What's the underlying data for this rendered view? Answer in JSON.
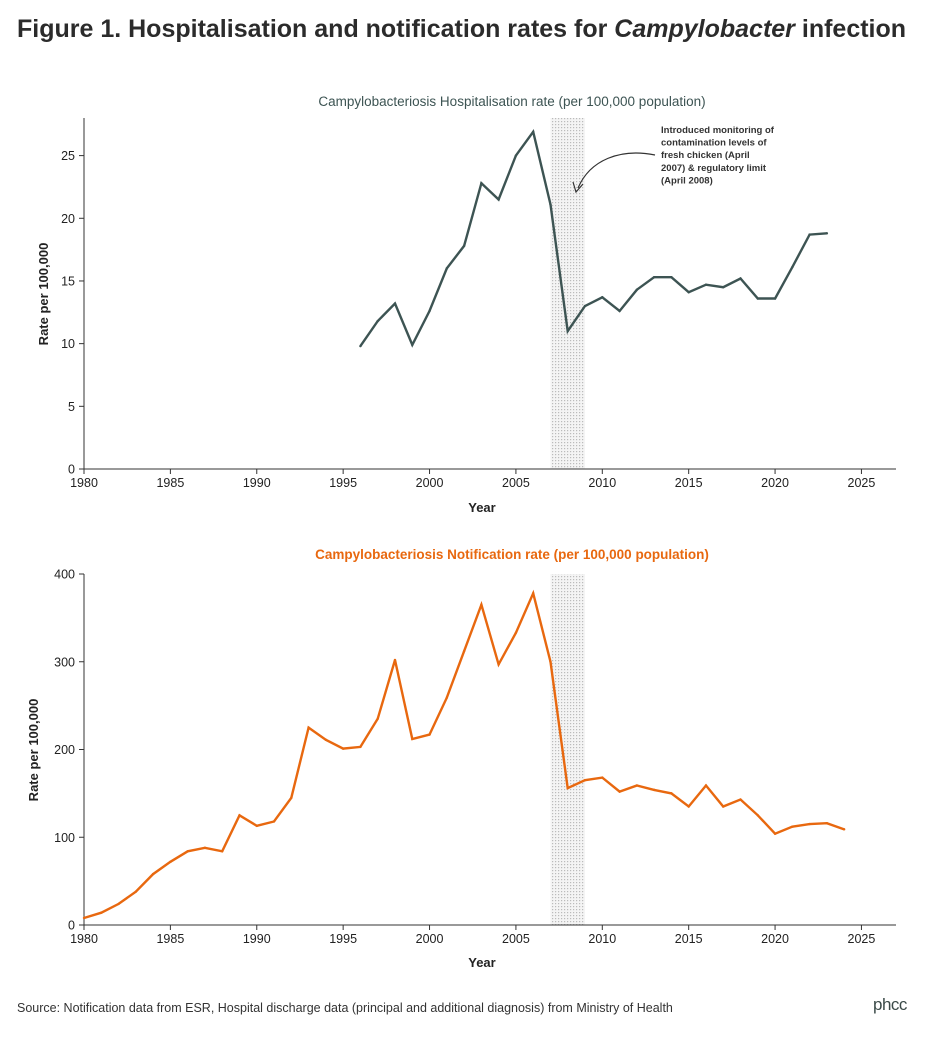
{
  "figure": {
    "title_prefix": "Figure 1. Hospitalisation and notification rates for ",
    "title_emph": "Campylobacter",
    "title_suffix": " infection"
  },
  "chart_data": [
    {
      "type": "line",
      "title": "Campylobacteriosis Hospitalisation rate (per 100,000 population)",
      "xlabel": "Year",
      "ylabel": "Rate per 100,000",
      "xlim": [
        1980,
        2027
      ],
      "ylim": [
        0,
        28
      ],
      "x_ticks": [
        1980,
        1985,
        1990,
        1995,
        2000,
        2005,
        2010,
        2015,
        2020,
        2025
      ],
      "y_ticks": [
        0,
        5,
        10,
        15,
        20,
        25
      ],
      "color": "#3d5453",
      "shaded_band": [
        2007,
        2009
      ],
      "annotation": {
        "lines": [
          "Introduced monitoring of",
          "contamination levels of",
          "fresh chicken (April",
          "2007) & regulatory limit",
          "(April 2008)"
        ]
      },
      "series": [
        {
          "name": "Hospitalisation rate",
          "x": [
            1996,
            1997,
            1998,
            1999,
            2000,
            2001,
            2002,
            2003,
            2004,
            2005,
            2006,
            2007,
            2008,
            2009,
            2010,
            2011,
            2012,
            2013,
            2014,
            2015,
            2016,
            2017,
            2018,
            2019,
            2020,
            2021,
            2022,
            2023
          ],
          "values": [
            9.8,
            11.8,
            13.2,
            9.9,
            12.6,
            16.0,
            17.8,
            22.8,
            21.5,
            25.0,
            26.9,
            21.1,
            11.0,
            13.0,
            13.7,
            12.6,
            14.3,
            15.3,
            15.3,
            14.1,
            14.7,
            14.5,
            15.2,
            13.6,
            13.6,
            16.1,
            18.7,
            18.8
          ]
        }
      ]
    },
    {
      "type": "line",
      "title": "Campylobacteriosis Notification rate (per 100,000 population)",
      "xlabel": "Year",
      "ylabel": "Rate per 100,000",
      "xlim": [
        1980,
        2027
      ],
      "ylim": [
        0,
        400
      ],
      "x_ticks": [
        1980,
        1985,
        1990,
        1995,
        2000,
        2005,
        2010,
        2015,
        2020,
        2025
      ],
      "y_ticks": [
        0,
        100,
        200,
        300,
        400
      ],
      "color": "#e8680f",
      "shaded_band": [
        2007,
        2009
      ],
      "series": [
        {
          "name": "Notification rate",
          "x": [
            1980,
            1981,
            1982,
            1983,
            1984,
            1985,
            1986,
            1987,
            1988,
            1989,
            1990,
            1991,
            1992,
            1993,
            1994,
            1995,
            1996,
            1997,
            1998,
            1999,
            2000,
            2001,
            2002,
            2003,
            2004,
            2005,
            2006,
            2007,
            2008,
            2009,
            2010,
            2011,
            2012,
            2013,
            2014,
            2015,
            2016,
            2017,
            2018,
            2019,
            2020,
            2021,
            2022,
            2023,
            2024
          ],
          "values": [
            8,
            14,
            24,
            38,
            58,
            72,
            84,
            88,
            84,
            125,
            113,
            118,
            145,
            225,
            211,
            201,
            203,
            235,
            302,
            212,
            217,
            259,
            312,
            365,
            297,
            333,
            378,
            300,
            156,
            165,
            168,
            152,
            159,
            154,
            150,
            135,
            159,
            135,
            143,
            125,
            104,
            112,
            115,
            116,
            109
          ]
        }
      ]
    }
  ],
  "footer": {
    "source": "Source: Notification data from ESR, Hospital discharge data (principal and additional diagnosis) from Ministry of Health",
    "logo": "phcc"
  },
  "colors": {
    "axis": "#333333",
    "band": "#bbbbbb"
  }
}
